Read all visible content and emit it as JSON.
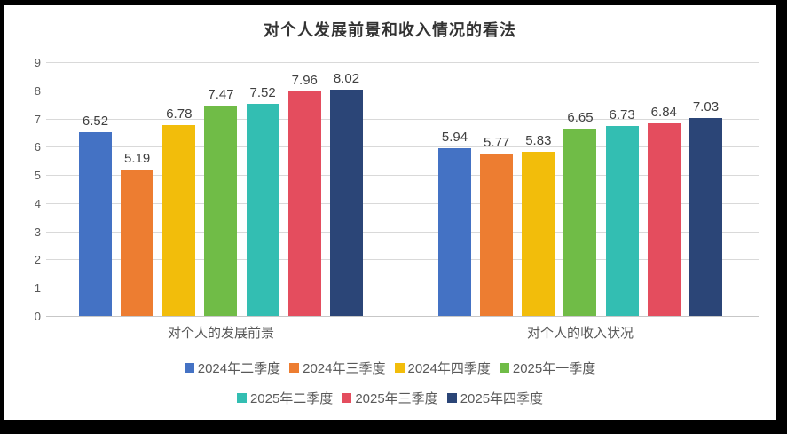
{
  "chart_data": {
    "type": "bar",
    "title": "对个人发展前景和收入情况的看法",
    "categories": [
      "对个人的发展前景",
      "对个人的收入状况"
    ],
    "series": [
      {
        "name": "2024年二季度",
        "color": "#4472C4",
        "values": [
          6.52,
          5.94
        ]
      },
      {
        "name": "2024年三季度",
        "color": "#ED7D31",
        "values": [
          5.19,
          5.77
        ]
      },
      {
        "name": "2024年四季度",
        "color": "#F2BD0B",
        "values": [
          6.78,
          5.83
        ]
      },
      {
        "name": "2025年一季度",
        "color": "#70BC47",
        "values": [
          7.47,
          6.65
        ]
      },
      {
        "name": "2025年二季度",
        "color": "#33BEB2",
        "values": [
          7.52,
          6.73
        ]
      },
      {
        "name": "2025年三季度",
        "color": "#E44D5E",
        "values": [
          7.96,
          6.84
        ]
      },
      {
        "name": "2025年四季度",
        "color": "#2B4577",
        "values": [
          8.02,
          7.03
        ]
      }
    ],
    "ylim": [
      0,
      9
    ],
    "yticks": [
      "0",
      "1",
      "2",
      "3",
      "4",
      "5",
      "6",
      "7",
      "8",
      "9"
    ],
    "grid": true,
    "legend_position": "bottom",
    "legend_rows": [
      [
        "2024年二季度",
        "2024年三季度",
        "2024年四季度",
        "2025年一季度"
      ],
      [
        "2025年二季度",
        "2025年三季度",
        "2025年四季度"
      ]
    ],
    "gridline_color": "#D9D9D9",
    "axis_line_color": "#C7C7C7",
    "label_color": "#404040",
    "tick_color": "#595959"
  }
}
